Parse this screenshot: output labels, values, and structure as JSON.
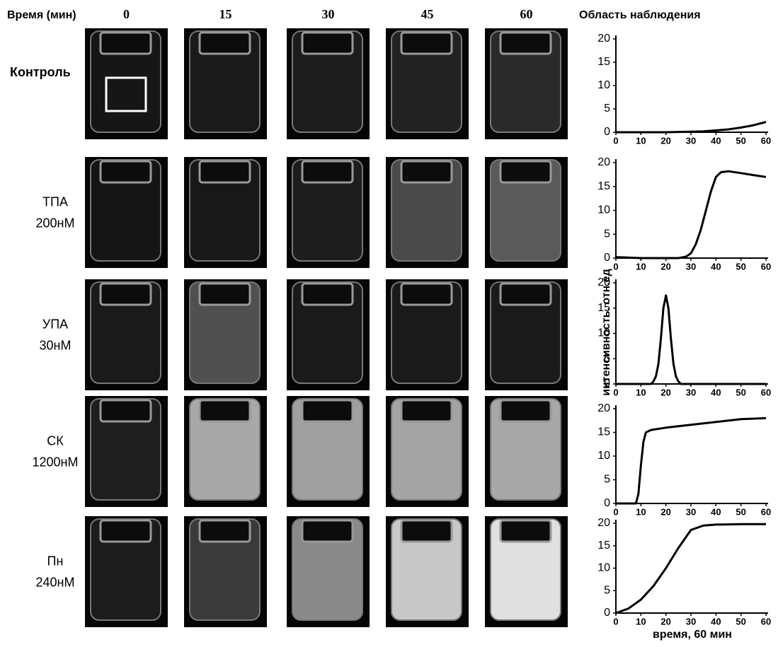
{
  "header": {
    "time_label": "Время (мин)",
    "times": [
      0,
      15,
      30,
      45,
      60
    ],
    "region_label": "Область наблюдения"
  },
  "rows": [
    [
      "Контроль"
    ],
    [
      "ТПА",
      "200нМ"
    ],
    [
      "УПА",
      "30нМ"
    ],
    [
      "СК",
      "1200нМ"
    ],
    [
      "Пн",
      "240нМ"
    ]
  ],
  "y_axis_label": "интенсивность. отн.ед",
  "x_axis_label": "время, 60 мин",
  "chart_data": [
    {
      "type": "line",
      "color": "#000000",
      "x": [
        0,
        10,
        20,
        30,
        35,
        40,
        45,
        50,
        55,
        60
      ],
      "values": [
        0,
        0,
        0,
        0.1,
        0.2,
        0.4,
        0.6,
        1,
        1.5,
        2.2
      ],
      "xlim": [
        0,
        60
      ],
      "ylim": [
        0,
        20
      ],
      "xticks": [
        0,
        10,
        20,
        30,
        40,
        50,
        60
      ],
      "yticks": [
        0,
        5,
        10,
        15,
        20
      ]
    },
    {
      "type": "line",
      "color": "#000000",
      "x": [
        0,
        5,
        10,
        20,
        25,
        28,
        30,
        32,
        34,
        36,
        38,
        40,
        42,
        45,
        50,
        55,
        60
      ],
      "values": [
        0.2,
        0.1,
        0,
        0,
        0,
        0.3,
        1,
        3,
        6,
        10,
        14,
        17,
        18,
        18.2,
        17.8,
        17.4,
        17
      ],
      "xlim": [
        0,
        60
      ],
      "ylim": [
        0,
        20
      ],
      "xticks": [
        0,
        10,
        20,
        30,
        40,
        50,
        60
      ],
      "yticks": [
        0,
        5,
        10,
        15,
        20
      ]
    },
    {
      "type": "line",
      "color": "#000000",
      "x": [
        0,
        10,
        14,
        15,
        16,
        17,
        18,
        19,
        20,
        21,
        22,
        23,
        24,
        25,
        26,
        30,
        40,
        50,
        60
      ],
      "values": [
        0,
        0,
        0,
        0.5,
        1.5,
        4,
        9,
        15,
        17.5,
        15,
        9,
        4,
        1.5,
        0.5,
        0,
        0,
        0,
        0,
        0
      ],
      "xlim": [
        0,
        60
      ],
      "ylim": [
        0,
        20
      ],
      "xticks": [
        0,
        10,
        20,
        30,
        40,
        50,
        60
      ],
      "yticks": [
        0,
        5,
        10,
        15,
        20
      ]
    },
    {
      "type": "line",
      "color": "#000000",
      "x": [
        0,
        5,
        8,
        9,
        10,
        11,
        12,
        14,
        20,
        30,
        40,
        50,
        60
      ],
      "values": [
        0,
        0,
        0,
        2,
        8,
        13,
        15,
        15.5,
        16,
        16.6,
        17.2,
        17.8,
        18
      ],
      "xlim": [
        0,
        60
      ],
      "ylim": [
        0,
        20
      ],
      "xticks": [
        0,
        10,
        20,
        30,
        40,
        50,
        60
      ],
      "yticks": [
        0,
        5,
        10,
        15,
        20
      ]
    },
    {
      "type": "line",
      "color": "#000000",
      "x": [
        0,
        5,
        10,
        15,
        20,
        25,
        30,
        35,
        40,
        50,
        60
      ],
      "values": [
        0,
        1,
        3,
        6,
        10,
        14.5,
        18.5,
        19.5,
        19.7,
        19.8,
        19.8
      ],
      "xlim": [
        0,
        60
      ],
      "ylim": [
        0,
        20
      ],
      "xticks": [
        0,
        10,
        20,
        30,
        40,
        50,
        60
      ],
      "yticks": [
        0,
        5,
        10,
        15,
        20
      ]
    }
  ]
}
